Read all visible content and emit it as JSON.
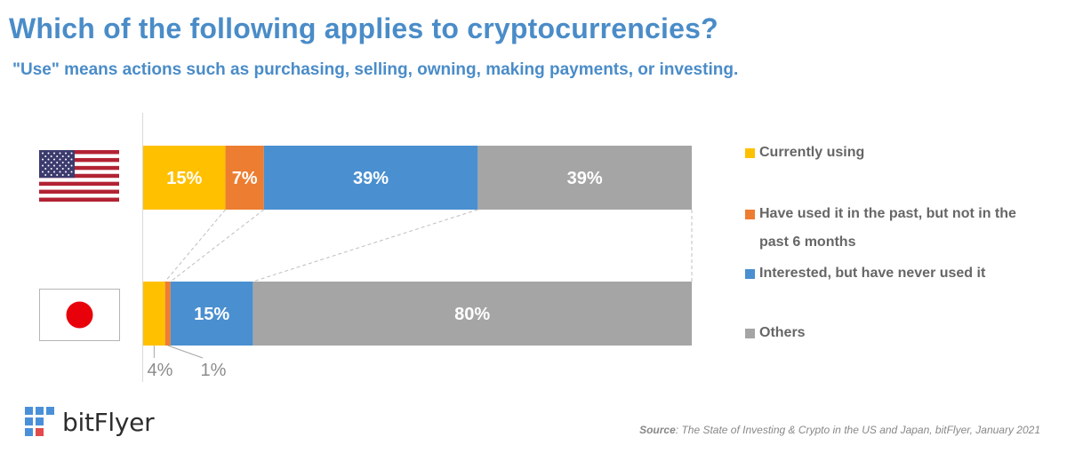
{
  "header": {
    "title": "Which of the following applies to cryptocurrencies?",
    "subtitle": "\"Use\" means actions such as purchasing, selling, owning, making payments, or investing."
  },
  "chart_data": {
    "type": "bar",
    "orientation": "horizontal",
    "stacked": true,
    "categories": [
      "United States",
      "Japan"
    ],
    "category_icons": [
      "us-flag-icon",
      "japan-flag-icon"
    ],
    "series": [
      {
        "name": "Currently using",
        "color": "#ffc000",
        "values": [
          15,
          4
        ],
        "labels": [
          "15%",
          "4%"
        ]
      },
      {
        "name": "Have used it in the past, but not in the past 6 months",
        "color": "#ed7d31",
        "values": [
          7,
          1
        ],
        "labels": [
          "7%",
          "1%"
        ]
      },
      {
        "name": "Interested, but have never used it",
        "color": "#4a8fd0",
        "values": [
          39,
          15
        ],
        "labels": [
          "39%",
          "15%"
        ]
      },
      {
        "name": "Others",
        "color": "#a5a5a5",
        "values": [
          39,
          80
        ],
        "labels": [
          "39%",
          "80%"
        ]
      }
    ],
    "xlim": [
      0,
      100
    ],
    "legend_position": "right",
    "grid": false
  },
  "source": {
    "prefix": "Source",
    "text": ": The State of Investing & Crypto in the US and Japan, bitFlyer, January 2021"
  },
  "logo": {
    "text": "bitFlyer"
  }
}
